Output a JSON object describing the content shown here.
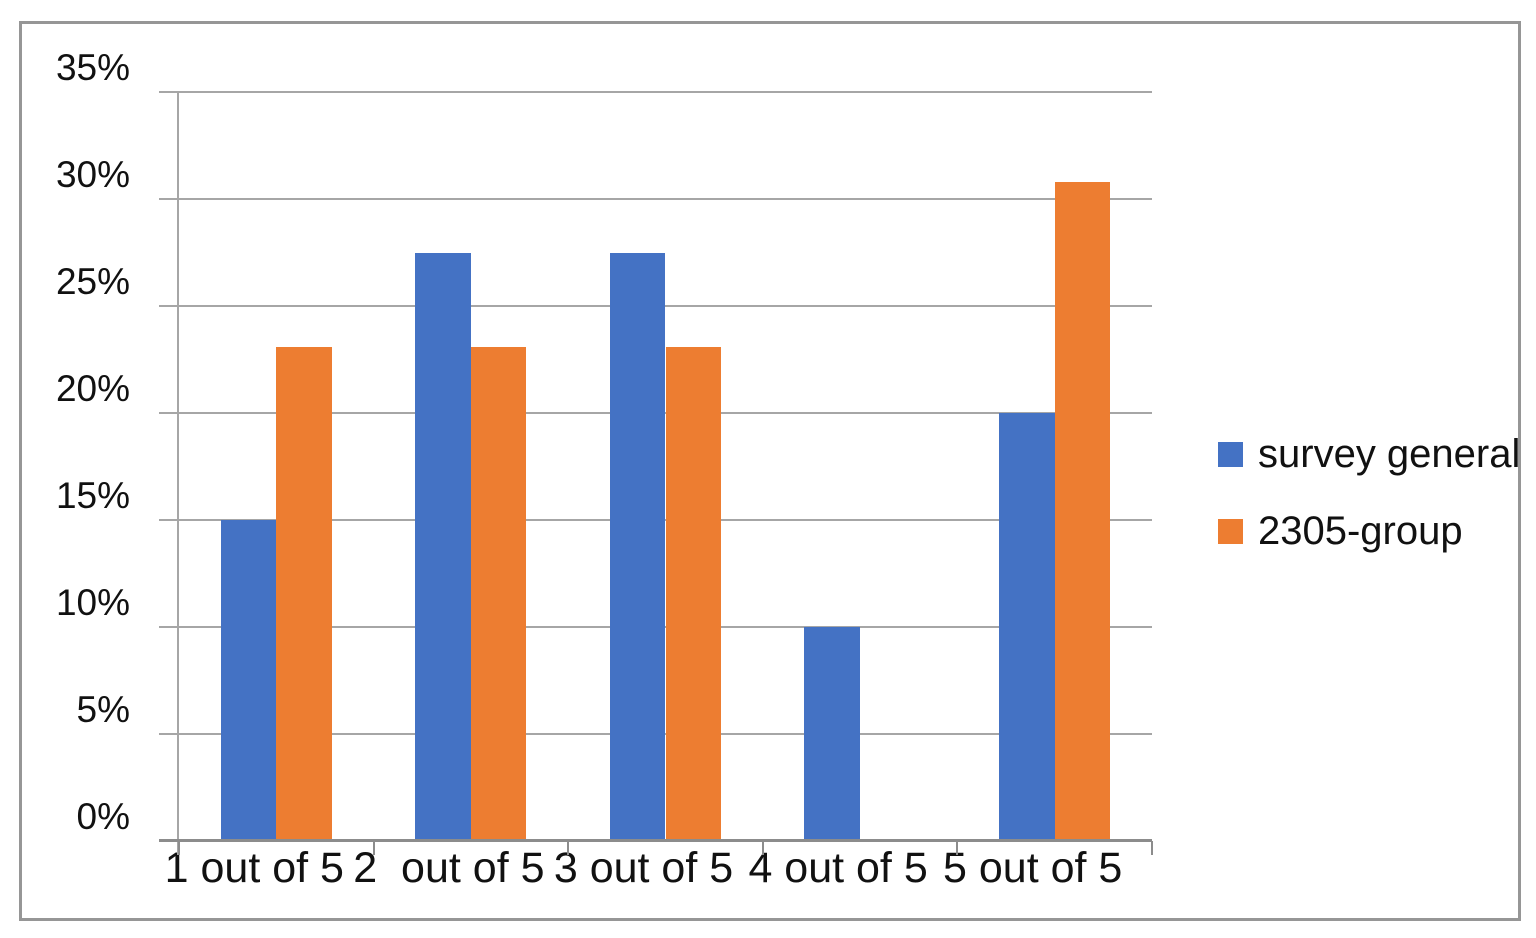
{
  "chart_data": {
    "type": "bar",
    "title": "",
    "categories": [
      "1 out of 5",
      "2  out of 5",
      "3 out of 5",
      "4 out of 5",
      "5 out of 5"
    ],
    "series": [
      {
        "name": "survey general",
        "color": "#4472C4",
        "values": [
          15,
          27.5,
          27.5,
          10,
          20
        ]
      },
      {
        "name": "2305-group",
        "color": "#ED7D31",
        "values": [
          23.1,
          23.1,
          23.1,
          0,
          30.8
        ]
      }
    ],
    "value_unit": "%",
    "ylim": [
      0,
      35
    ],
    "yticks": [
      0,
      5,
      10,
      15,
      20,
      25,
      30,
      35
    ],
    "ytick_labels": [
      "0%",
      "5%",
      "10%",
      "15%",
      "20%",
      "25%",
      "30%",
      "35%"
    ],
    "xlabel": "",
    "ylabel": "",
    "grid": true,
    "legend_position": "right",
    "colors": {
      "gridline": "#a6a6a6",
      "axis": "#8c8c8c",
      "text": "#111111",
      "frame_border": "#969696",
      "background": "#ffffff"
    }
  }
}
